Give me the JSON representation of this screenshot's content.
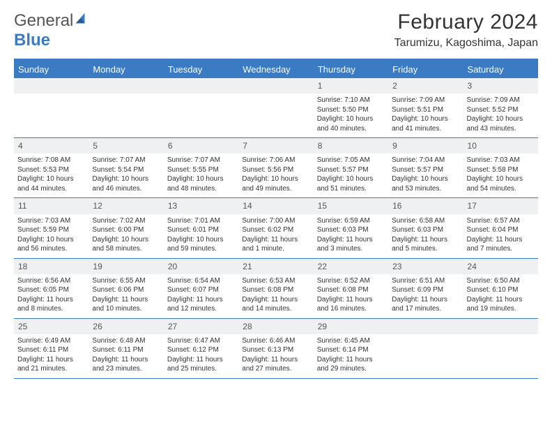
{
  "logo": {
    "text_general": "General",
    "text_blue": "Blue"
  },
  "header": {
    "month_title": "February 2024",
    "location": "Tarumizu, Kagoshima, Japan"
  },
  "day_headers": [
    "Sunday",
    "Monday",
    "Tuesday",
    "Wednesday",
    "Thursday",
    "Friday",
    "Saturday"
  ],
  "colors": {
    "brand_blue": "#3b7bc4",
    "header_row_bg": "#eef0f1",
    "text": "#333333",
    "bg": "#ffffff"
  },
  "weeks": [
    {
      "nums": [
        "",
        "",
        "",
        "",
        "1",
        "2",
        "3"
      ],
      "cells": [
        {},
        {},
        {},
        {},
        {
          "sunrise": "Sunrise: 7:10 AM",
          "sunset": "Sunset: 5:50 PM",
          "daylight": "Daylight: 10 hours and 40 minutes."
        },
        {
          "sunrise": "Sunrise: 7:09 AM",
          "sunset": "Sunset: 5:51 PM",
          "daylight": "Daylight: 10 hours and 41 minutes."
        },
        {
          "sunrise": "Sunrise: 7:09 AM",
          "sunset": "Sunset: 5:52 PM",
          "daylight": "Daylight: 10 hours and 43 minutes."
        }
      ]
    },
    {
      "nums": [
        "4",
        "5",
        "6",
        "7",
        "8",
        "9",
        "10"
      ],
      "cells": [
        {
          "sunrise": "Sunrise: 7:08 AM",
          "sunset": "Sunset: 5:53 PM",
          "daylight": "Daylight: 10 hours and 44 minutes."
        },
        {
          "sunrise": "Sunrise: 7:07 AM",
          "sunset": "Sunset: 5:54 PM",
          "daylight": "Daylight: 10 hours and 46 minutes."
        },
        {
          "sunrise": "Sunrise: 7:07 AM",
          "sunset": "Sunset: 5:55 PM",
          "daylight": "Daylight: 10 hours and 48 minutes."
        },
        {
          "sunrise": "Sunrise: 7:06 AM",
          "sunset": "Sunset: 5:56 PM",
          "daylight": "Daylight: 10 hours and 49 minutes."
        },
        {
          "sunrise": "Sunrise: 7:05 AM",
          "sunset": "Sunset: 5:57 PM",
          "daylight": "Daylight: 10 hours and 51 minutes."
        },
        {
          "sunrise": "Sunrise: 7:04 AM",
          "sunset": "Sunset: 5:57 PM",
          "daylight": "Daylight: 10 hours and 53 minutes."
        },
        {
          "sunrise": "Sunrise: 7:03 AM",
          "sunset": "Sunset: 5:58 PM",
          "daylight": "Daylight: 10 hours and 54 minutes."
        }
      ]
    },
    {
      "nums": [
        "11",
        "12",
        "13",
        "14",
        "15",
        "16",
        "17"
      ],
      "cells": [
        {
          "sunrise": "Sunrise: 7:03 AM",
          "sunset": "Sunset: 5:59 PM",
          "daylight": "Daylight: 10 hours and 56 minutes."
        },
        {
          "sunrise": "Sunrise: 7:02 AM",
          "sunset": "Sunset: 6:00 PM",
          "daylight": "Daylight: 10 hours and 58 minutes."
        },
        {
          "sunrise": "Sunrise: 7:01 AM",
          "sunset": "Sunset: 6:01 PM",
          "daylight": "Daylight: 10 hours and 59 minutes."
        },
        {
          "sunrise": "Sunrise: 7:00 AM",
          "sunset": "Sunset: 6:02 PM",
          "daylight": "Daylight: 11 hours and 1 minute."
        },
        {
          "sunrise": "Sunrise: 6:59 AM",
          "sunset": "Sunset: 6:03 PM",
          "daylight": "Daylight: 11 hours and 3 minutes."
        },
        {
          "sunrise": "Sunrise: 6:58 AM",
          "sunset": "Sunset: 6:03 PM",
          "daylight": "Daylight: 11 hours and 5 minutes."
        },
        {
          "sunrise": "Sunrise: 6:57 AM",
          "sunset": "Sunset: 6:04 PM",
          "daylight": "Daylight: 11 hours and 7 minutes."
        }
      ]
    },
    {
      "nums": [
        "18",
        "19",
        "20",
        "21",
        "22",
        "23",
        "24"
      ],
      "cells": [
        {
          "sunrise": "Sunrise: 6:56 AM",
          "sunset": "Sunset: 6:05 PM",
          "daylight": "Daylight: 11 hours and 8 minutes."
        },
        {
          "sunrise": "Sunrise: 6:55 AM",
          "sunset": "Sunset: 6:06 PM",
          "daylight": "Daylight: 11 hours and 10 minutes."
        },
        {
          "sunrise": "Sunrise: 6:54 AM",
          "sunset": "Sunset: 6:07 PM",
          "daylight": "Daylight: 11 hours and 12 minutes."
        },
        {
          "sunrise": "Sunrise: 6:53 AM",
          "sunset": "Sunset: 6:08 PM",
          "daylight": "Daylight: 11 hours and 14 minutes."
        },
        {
          "sunrise": "Sunrise: 6:52 AM",
          "sunset": "Sunset: 6:08 PM",
          "daylight": "Daylight: 11 hours and 16 minutes."
        },
        {
          "sunrise": "Sunrise: 6:51 AM",
          "sunset": "Sunset: 6:09 PM",
          "daylight": "Daylight: 11 hours and 17 minutes."
        },
        {
          "sunrise": "Sunrise: 6:50 AM",
          "sunset": "Sunset: 6:10 PM",
          "daylight": "Daylight: 11 hours and 19 minutes."
        }
      ]
    },
    {
      "nums": [
        "25",
        "26",
        "27",
        "28",
        "29",
        "",
        ""
      ],
      "cells": [
        {
          "sunrise": "Sunrise: 6:49 AM",
          "sunset": "Sunset: 6:11 PM",
          "daylight": "Daylight: 11 hours and 21 minutes."
        },
        {
          "sunrise": "Sunrise: 6:48 AM",
          "sunset": "Sunset: 6:11 PM",
          "daylight": "Daylight: 11 hours and 23 minutes."
        },
        {
          "sunrise": "Sunrise: 6:47 AM",
          "sunset": "Sunset: 6:12 PM",
          "daylight": "Daylight: 11 hours and 25 minutes."
        },
        {
          "sunrise": "Sunrise: 6:46 AM",
          "sunset": "Sunset: 6:13 PM",
          "daylight": "Daylight: 11 hours and 27 minutes."
        },
        {
          "sunrise": "Sunrise: 6:45 AM",
          "sunset": "Sunset: 6:14 PM",
          "daylight": "Daylight: 11 hours and 29 minutes."
        },
        {},
        {}
      ]
    }
  ]
}
